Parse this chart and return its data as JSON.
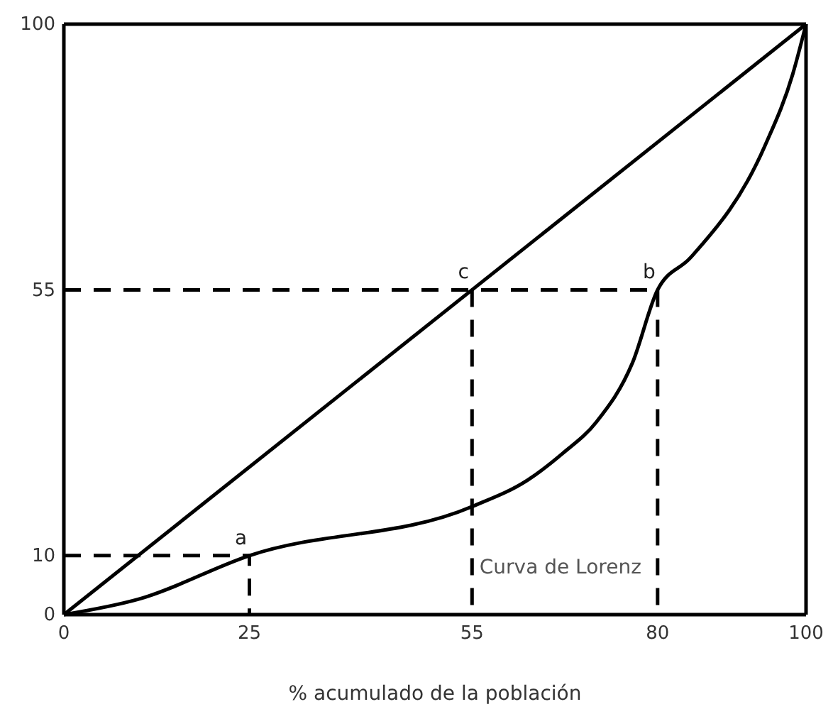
{
  "chart_data": {
    "type": "line",
    "xlabel": "% acumulado de la población",
    "xlim": [
      0,
      100
    ],
    "ylim": [
      0,
      100
    ],
    "xticks": [
      0,
      25,
      55,
      80,
      100
    ],
    "yticks": [
      0,
      10,
      55,
      100
    ],
    "grid": false,
    "legend": false,
    "marker": "none",
    "series": [
      {
        "x": [
          0,
          100
        ],
        "values": [
          0,
          100
        ],
        "color": "#000000",
        "line_style": "solid"
      },
      {
        "name": "Curva de Lorenz",
        "x": [
          0,
          10,
          25,
          55,
          62.5,
          67.2,
          71.8,
          76.6,
          80,
          84.4,
          94.5,
          98.2,
          100
        ],
        "values": [
          0,
          2.6,
          10,
          18.3,
          22.8,
          27.3,
          32.7,
          42.6,
          55,
          60.4,
          79.5,
          91.5,
          100
        ],
        "color": "#000000",
        "line_style": "solid"
      },
      {
        "x": [
          0,
          25,
          25
        ],
        "values": [
          10,
          10,
          0
        ],
        "color": "#000000",
        "line_style": "dashed"
      },
      {
        "x": [
          0,
          80
        ],
        "values": [
          55,
          55
        ],
        "color": "#000000",
        "line_style": "dashed"
      },
      {
        "x": [
          55,
          55
        ],
        "values": [
          55,
          0
        ],
        "color": "#000000",
        "line_style": "dashed"
      },
      {
        "x": [
          80,
          80
        ],
        "values": [
          55,
          0
        ],
        "color": "#000000",
        "line_style": "dashed"
      }
    ],
    "annotations": [
      {
        "text": "a",
        "x": 25,
        "y": 10
      },
      {
        "text": "b",
        "x": 80,
        "y": 55
      },
      {
        "text": "c",
        "x": 55,
        "y": 55
      }
    ]
  }
}
